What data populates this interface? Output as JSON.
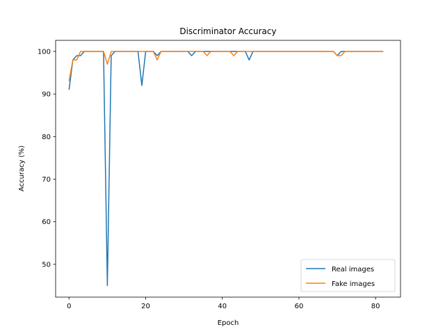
{
  "chart_data": {
    "type": "line",
    "title": "Discriminator Accuracy",
    "xlabel": "Epoch",
    "ylabel": "Accuracy (%)",
    "xlim": [
      -3.5,
      86.5
    ],
    "ylim": [
      42.3,
      102.6
    ],
    "xticks": [
      0,
      20,
      40,
      60,
      80
    ],
    "yticks": [
      50,
      60,
      70,
      80,
      90,
      100
    ],
    "grid": false,
    "legend_position": "lower-right",
    "series": [
      {
        "name": "Real images",
        "color": "#1f77b4",
        "x": [
          0,
          1,
          2,
          3,
          4,
          5,
          6,
          7,
          8,
          9,
          10,
          11,
          12,
          13,
          14,
          15,
          16,
          17,
          18,
          19,
          20,
          21,
          22,
          23,
          24,
          25,
          26,
          27,
          28,
          29,
          30,
          31,
          32,
          33,
          34,
          35,
          36,
          37,
          38,
          39,
          40,
          41,
          42,
          43,
          44,
          45,
          46,
          47,
          48,
          49,
          50,
          51,
          52,
          53,
          54,
          55,
          56,
          57,
          58,
          59,
          60,
          61,
          62,
          63,
          64,
          65,
          66,
          67,
          68,
          69,
          70,
          71,
          72,
          73,
          74,
          75,
          76,
          77,
          78,
          79,
          80,
          81,
          82
        ],
        "y": [
          91,
          98,
          99,
          99,
          100,
          100,
          100,
          100,
          100,
          100,
          45,
          99,
          100,
          100,
          100,
          100,
          100,
          100,
          100,
          92,
          100,
          100,
          100,
          99,
          100,
          100,
          100,
          100,
          100,
          100,
          100,
          100,
          99,
          100,
          100,
          100,
          100,
          100,
          100,
          100,
          100,
          100,
          100,
          100,
          100,
          100,
          100,
          98,
          100,
          100,
          100,
          100,
          100,
          100,
          100,
          100,
          100,
          100,
          100,
          100,
          100,
          100,
          100,
          100,
          100,
          100,
          100,
          100,
          100,
          100,
          99,
          100,
          100,
          100,
          100,
          100,
          100,
          100,
          100,
          100,
          100,
          100,
          100
        ]
      },
      {
        "name": "Fake images",
        "color": "#ff7f0e",
        "x": [
          0,
          1,
          2,
          3,
          4,
          5,
          6,
          7,
          8,
          9,
          10,
          11,
          12,
          13,
          14,
          15,
          16,
          17,
          18,
          19,
          20,
          21,
          22,
          23,
          24,
          25,
          26,
          27,
          28,
          29,
          30,
          31,
          32,
          33,
          34,
          35,
          36,
          37,
          38,
          39,
          40,
          41,
          42,
          43,
          44,
          45,
          46,
          47,
          48,
          49,
          50,
          51,
          52,
          53,
          54,
          55,
          56,
          57,
          58,
          59,
          60,
          61,
          62,
          63,
          64,
          65,
          66,
          67,
          68,
          69,
          70,
          71,
          72,
          73,
          74,
          75,
          76,
          77,
          78,
          79,
          80,
          81,
          82
        ],
        "y": [
          93,
          98,
          98,
          100,
          100,
          100,
          100,
          100,
          100,
          100,
          97,
          100,
          100,
          100,
          100,
          100,
          100,
          100,
          100,
          100,
          100,
          100,
          100,
          98,
          100,
          100,
          100,
          100,
          100,
          100,
          100,
          100,
          100,
          100,
          100,
          100,
          99,
          100,
          100,
          100,
          100,
          100,
          100,
          99,
          100,
          100,
          100,
          100,
          100,
          100,
          100,
          100,
          100,
          100,
          100,
          100,
          100,
          100,
          100,
          100,
          100,
          100,
          100,
          100,
          100,
          100,
          100,
          100,
          100,
          100,
          99,
          99,
          100,
          100,
          100,
          100,
          100,
          100,
          100,
          100,
          100,
          100,
          100
        ]
      }
    ]
  }
}
